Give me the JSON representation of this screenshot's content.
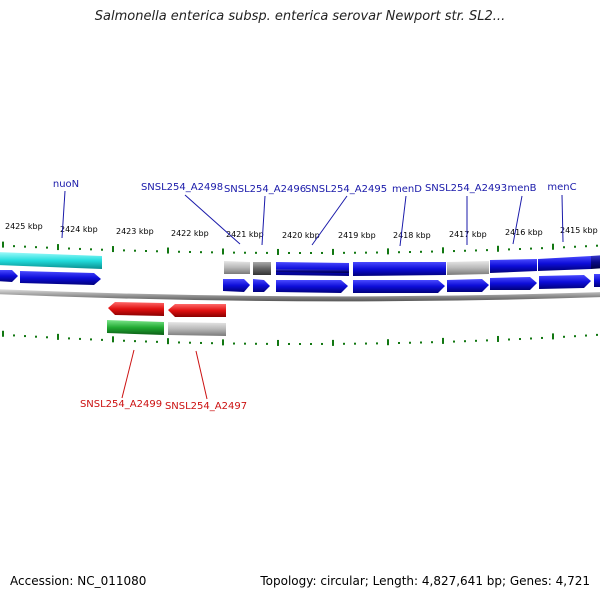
{
  "header": {
    "title": "Salmonella enterica subsp. enterica serovar Newport str. SL2..."
  },
  "footer": {
    "accession": "Accession: NC_011080",
    "summary": "Topology: circular; Length: 4,827,641 bp; Genes: 4,721"
  },
  "scale": {
    "ticks": [
      "2425 kbp",
      "2424 kbp",
      "2423 kbp",
      "2422 kbp",
      "2421 kbp",
      "2420 kbp",
      "2419 kbp",
      "2418 kbp",
      "2417 kbp",
      "2416 kbp",
      "2415 kbp"
    ]
  },
  "colors": {
    "forward_gene": "#0d0dd9",
    "cyan_gene": "#22dddd",
    "red_gene": "#e01010",
    "green_gene": "#22aa33",
    "grey_gene": "#b8b8b8",
    "tick": "#117711",
    "label_top": "#1a1aaa",
    "label_bottom": "#cc1111"
  },
  "labels_top": [
    "nuoN",
    "SNSL254_A2498",
    "SNSL254_A2496",
    "SNSL254_A2495",
    "menD",
    "SNSL254_A2493",
    "menB",
    "menC"
  ],
  "labels_bottom": [
    "SNSL254_A2499",
    "SNSL254_A2497"
  ]
}
